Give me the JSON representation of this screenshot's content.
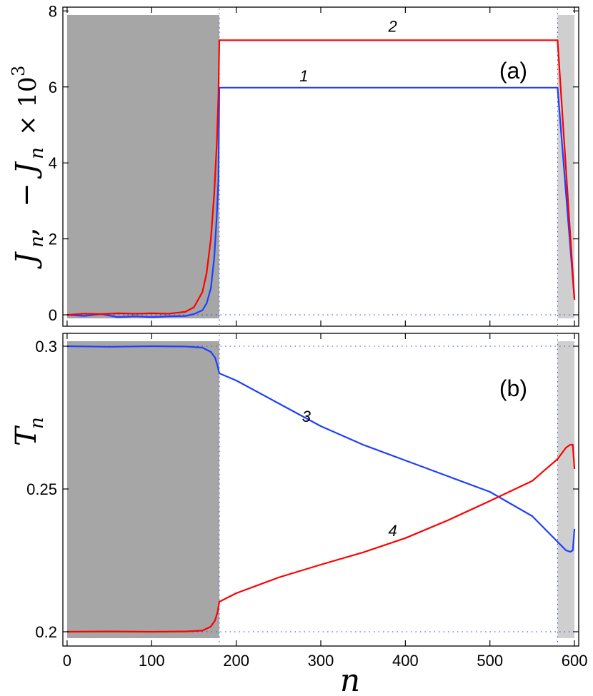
{
  "chart_data": [
    {
      "type": "line",
      "panel_label": "(a)",
      "ylabel_main": "J",
      "ylabel_sub": "n",
      "ylabel_sep": ",",
      "ylabel_neg": "− J",
      "ylabel_neg_sub": "n",
      "ylabel_mult": "× 10",
      "ylabel_exp": "3",
      "xlim": [
        -5,
        605
      ],
      "ylim": [
        -0.3,
        8.1
      ],
      "yticks": [
        0,
        2,
        4,
        6,
        8
      ],
      "ytick_labels": [
        "0",
        "2",
        "4",
        "6",
        "8"
      ],
      "dark_region": [
        0,
        180
      ],
      "light_region": [
        580,
        600
      ],
      "dotted_lines_y": [
        0
      ],
      "dotted_lines_x": [
        180,
        580
      ],
      "series": [
        {
          "name": "1",
          "color": "#1f3fff",
          "x": [
            0,
            20,
            40,
            60,
            80,
            100,
            120,
            140,
            150,
            160,
            165,
            170,
            174,
            177,
            179,
            180,
            580,
            600
          ],
          "y": [
            0,
            -0.03,
            0.02,
            -0.06,
            -0.04,
            -0.06,
            -0.04,
            -0.03,
            0.02,
            0.12,
            0.3,
            0.7,
            1.5,
            2.6,
            3.6,
            5.98,
            5.98,
            0.4
          ]
        },
        {
          "name": "2",
          "color": "#ff0000",
          "x": [
            0,
            20,
            40,
            60,
            80,
            100,
            120,
            140,
            150,
            160,
            165,
            170,
            174,
            177,
            179,
            180,
            580,
            600
          ],
          "y": [
            0,
            0.03,
            0.02,
            0.04,
            0.03,
            0.04,
            0.03,
            0.08,
            0.2,
            0.6,
            1.1,
            2.0,
            3.2,
            4.5,
            5.8,
            7.23,
            7.23,
            0.4
          ]
        }
      ],
      "curve_labels": [
        {
          "text": "1",
          "x": 280,
          "y": 6.15
        },
        {
          "text": "2",
          "x": 385,
          "y": 7.45
        }
      ]
    },
    {
      "type": "line",
      "panel_label": "(b)",
      "ylabel_main": "T",
      "ylabel_sub": "n",
      "xlabel": "n",
      "xlim": [
        -5,
        605
      ],
      "ylim": [
        0.195,
        0.3045
      ],
      "yticks": [
        0.2,
        0.25,
        0.3
      ],
      "ytick_labels": [
        "0.2",
        "0.25",
        "0.3"
      ],
      "xticks": [
        0,
        100,
        200,
        300,
        400,
        500,
        600
      ],
      "xtick_labels": [
        "0",
        "100",
        "200",
        "300",
        "400",
        "500",
        "600"
      ],
      "dark_region": [
        0,
        180
      ],
      "light_region": [
        580,
        600
      ],
      "dotted_lines_y": [
        0.3,
        0.2
      ],
      "dotted_lines_x": [
        180,
        580
      ],
      "series": [
        {
          "name": "3",
          "color": "#1f3fff",
          "x": [
            0,
            50,
            100,
            140,
            160,
            170,
            175,
            178,
            180,
            200,
            250,
            300,
            350,
            400,
            450,
            500,
            550,
            580,
            590,
            595,
            598,
            600
          ],
          "y": [
            0.3,
            0.2998,
            0.3,
            0.2999,
            0.2995,
            0.298,
            0.296,
            0.293,
            0.2905,
            0.288,
            0.28,
            0.272,
            0.2655,
            0.26,
            0.2545,
            0.249,
            0.2405,
            0.2315,
            0.2285,
            0.228,
            0.2285,
            0.236
          ]
        },
        {
          "name": "4",
          "color": "#ff0000",
          "x": [
            0,
            50,
            100,
            140,
            160,
            170,
            175,
            178,
            180,
            200,
            250,
            300,
            350,
            400,
            450,
            500,
            550,
            580,
            590,
            595,
            598,
            600
          ],
          "y": [
            0.2,
            0.2001,
            0.2,
            0.2001,
            0.2004,
            0.2018,
            0.204,
            0.207,
            0.2105,
            0.2135,
            0.219,
            0.2235,
            0.2278,
            0.2328,
            0.239,
            0.2458,
            0.2528,
            0.2605,
            0.2645,
            0.2655,
            0.2655,
            0.257
          ]
        }
      ],
      "curve_labels": [
        {
          "text": "3",
          "x": 283,
          "y": 0.2735
        },
        {
          "text": "4",
          "x": 385,
          "y": 0.2335
        }
      ]
    }
  ]
}
